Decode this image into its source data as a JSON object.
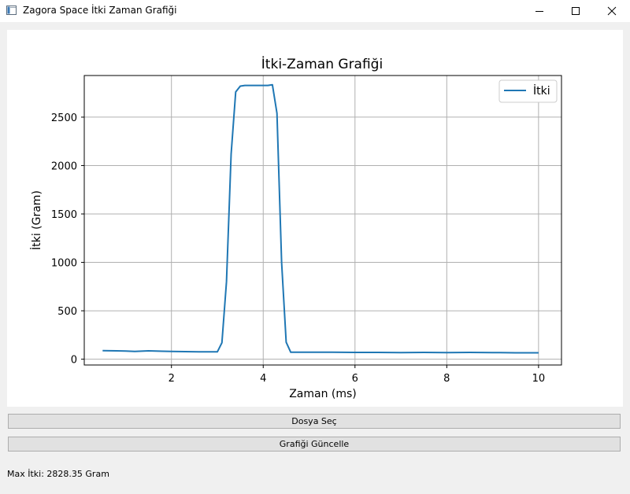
{
  "window": {
    "title": "Zagora Space İtki Zaman Grafiği",
    "icons": [
      "app-icon",
      "minimize-icon",
      "maximize-icon",
      "close-icon"
    ]
  },
  "buttons": {
    "file_select": "Dosya Seç",
    "update_graph": "Grafiği Güncelle"
  },
  "status": {
    "max_thrust": "Max İtki: 2828.35 Gram"
  },
  "chart_data": {
    "type": "line",
    "title": "İtki-Zaman Grafiği",
    "xlabel": "Zaman (ms)",
    "ylabel": "İtki (Gram)",
    "xlim": [
      0.1,
      10.5
    ],
    "ylim": [
      -60,
      2930
    ],
    "xticks": [
      2,
      4,
      6,
      8,
      10
    ],
    "yticks": [
      0,
      500,
      1000,
      1500,
      2000,
      2500
    ],
    "grid": true,
    "legend_position": "top-right",
    "series_color": "#1f77b4",
    "series": [
      {
        "name": "İtki",
        "x": [
          0.5,
          0.8,
          1.0,
          1.2,
          1.5,
          1.8,
          2.0,
          2.3,
          2.6,
          2.8,
          3.0,
          3.1,
          3.2,
          3.3,
          3.4,
          3.5,
          3.6,
          3.8,
          4.0,
          4.1,
          4.2,
          4.3,
          4.4,
          4.5,
          4.6,
          5.0,
          5.5,
          6.0,
          6.5,
          7.0,
          7.5,
          8.0,
          8.5,
          9.0,
          9.5,
          10.0
        ],
        "y": [
          88,
          86,
          84,
          80,
          86,
          82,
          80,
          78,
          76,
          76,
          76,
          170,
          800,
          2120,
          2760,
          2820,
          2828,
          2828,
          2828,
          2828,
          2835,
          2540,
          1000,
          175,
          72,
          72,
          72,
          70,
          70,
          68,
          70,
          68,
          70,
          68,
          66,
          66
        ]
      }
    ]
  }
}
